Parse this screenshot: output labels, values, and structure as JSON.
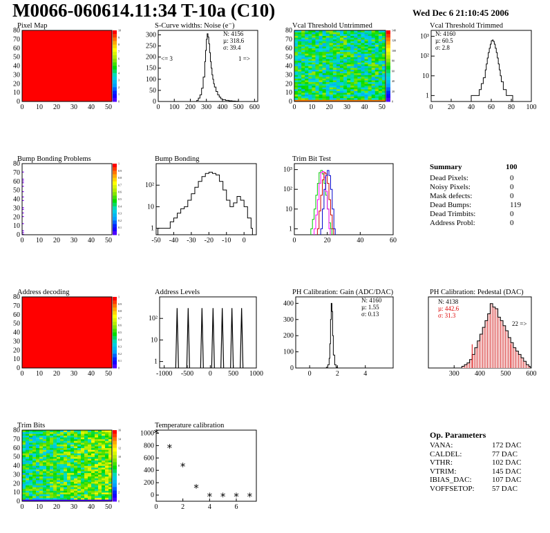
{
  "header": {
    "title": "M0066-060614.11:34 T-10a (C10)",
    "date": "Wed Dec  6 21:10:45 2006"
  },
  "summary": {
    "title": "Summary",
    "total": "100",
    "rows": [
      {
        "label": "Dead Pixels:",
        "value": "0"
      },
      {
        "label": "Noisy Pixels:",
        "value": "0"
      },
      {
        "label": "Mask defects:",
        "value": "0"
      },
      {
        "label": "Dead Bumps:",
        "value": "119"
      },
      {
        "label": "Dead Trimbits:",
        "value": "0"
      },
      {
        "label": "Address Probl:",
        "value": "0"
      }
    ]
  },
  "op_params": {
    "title": "Op. Parameters",
    "rows": [
      {
        "label": "VANA:",
        "value": "172 DAC"
      },
      {
        "label": "CALDEL:",
        "value": "77 DAC"
      },
      {
        "label": "VTHR:",
        "value": "102 DAC"
      },
      {
        "label": "VTRIM:",
        "value": "145 DAC"
      },
      {
        "label": "IBIAS_DAC:",
        "value": "107 DAC"
      },
      {
        "label": "VOFFSETOP:",
        "value": "57 DAC"
      }
    ]
  },
  "chart_data": [
    {
      "id": "pixel-map",
      "type": "heatmap",
      "title": "Pixel Map",
      "xlim": [
        0,
        52
      ],
      "ylim": [
        0,
        80
      ],
      "xticks": [
        0,
        10,
        20,
        30,
        40,
        50
      ],
      "yticks": [
        0,
        10,
        20,
        30,
        40,
        50,
        60,
        70,
        80
      ],
      "fill": "uniform",
      "value": 10,
      "zlim": [
        0,
        10
      ],
      "zticks": [
        "0",
        "1",
        "2",
        "3",
        "4",
        "5",
        "6",
        "7",
        "8",
        "9",
        "10"
      ]
    },
    {
      "id": "scurve-noise",
      "type": "line",
      "title": "S-Curve widths: Noise (e⁻)",
      "xlim": [
        0,
        620
      ],
      "ylim": [
        0,
        320
      ],
      "xticks": [
        0,
        100,
        200,
        300,
        400,
        500,
        600
      ],
      "yticks": [
        0,
        50,
        100,
        150,
        200,
        250,
        300
      ],
      "stats": {
        "N": "N: 4156",
        "mean": "µ: 318.6",
        "sigma": "σ: 39.4"
      },
      "annotations": [
        "<= 3",
        "1 =>"
      ],
      "x": [
        230,
        240,
        250,
        260,
        270,
        280,
        290,
        295,
        300,
        305,
        310,
        315,
        320,
        325,
        330,
        335,
        340,
        345,
        350,
        360,
        370,
        380,
        390,
        400,
        420,
        440,
        460,
        480,
        500
      ],
      "values": [
        0,
        5,
        15,
        30,
        60,
        110,
        180,
        230,
        280,
        305,
        290,
        260,
        220,
        180,
        150,
        120,
        100,
        80,
        65,
        45,
        30,
        20,
        12,
        8,
        5,
        3,
        2,
        1,
        0
      ]
    },
    {
      "id": "vcal-untrimmed",
      "type": "heatmap",
      "title": "Vcal Threshold Untrimmed",
      "xlim": [
        0,
        52
      ],
      "ylim": [
        0,
        80
      ],
      "xticks": [
        0,
        10,
        20,
        30,
        40,
        50
      ],
      "yticks": [
        0,
        10,
        20,
        30,
        40,
        50,
        60,
        70,
        80
      ],
      "fill": "noise",
      "zlim": [
        0,
        140
      ],
      "zticks": [
        "0",
        "20",
        "40",
        "60",
        "80",
        "100",
        "120",
        "140"
      ]
    },
    {
      "id": "vcal-trimmed",
      "type": "line",
      "title": "Vcal Threshold Trimmed",
      "log_y": true,
      "xlim": [
        0,
        100
      ],
      "ylim": [
        0.5,
        2000
      ],
      "xticks": [
        0,
        20,
        40,
        60,
        80,
        100
      ],
      "ytick_labels": [
        "1",
        "10",
        "10²",
        "10³"
      ],
      "ytick_values": [
        1,
        10,
        100,
        1000
      ],
      "stats": {
        "N": "N: 4160",
        "mean": "µ: 60.5",
        "sigma": "σ:  2.8"
      },
      "x": [
        40,
        45,
        48,
        50,
        52,
        54,
        55,
        56,
        57,
        58,
        59,
        60,
        61,
        62,
        63,
        64,
        65,
        66,
        67,
        68,
        69,
        70,
        72,
        75,
        78,
        80
      ],
      "values": [
        1,
        1,
        2,
        4,
        8,
        20,
        40,
        80,
        150,
        250,
        400,
        600,
        650,
        550,
        400,
        250,
        150,
        80,
        40,
        20,
        10,
        5,
        2,
        1,
        1,
        1
      ]
    },
    {
      "id": "bump-map",
      "type": "heatmap",
      "title": "Bump Bonding Problems",
      "xlim": [
        0,
        52
      ],
      "ylim": [
        0,
        80
      ],
      "xticks": [
        0,
        10,
        20,
        30,
        40,
        50
      ],
      "yticks": [
        0,
        10,
        20,
        30,
        40,
        50,
        60,
        70,
        80
      ],
      "fill": "sparse",
      "zlim": [
        0,
        1
      ],
      "zticks": [
        "0",
        "0.1",
        "0.2",
        "0.3",
        "0.4",
        "0.5",
        "0.6",
        "0.7",
        "0.8",
        "0.9",
        "1"
      ]
    },
    {
      "id": "bump-bonding",
      "type": "line",
      "title": "Bump Bonding",
      "log_y": true,
      "xlim": [
        -50,
        7
      ],
      "ylim": [
        0.5,
        1000
      ],
      "xticks": [
        -50,
        -40,
        -30,
        -20,
        -10,
        0
      ],
      "ytick_labels": [
        "1",
        "10",
        "10²"
      ],
      "ytick_values": [
        1,
        10,
        100
      ],
      "x": [
        -49,
        -46,
        -44,
        -42,
        -40,
        -38,
        -36,
        -34,
        -32,
        -30,
        -28,
        -26,
        -24,
        -22,
        -20,
        -18,
        -16,
        -14,
        -12,
        -10,
        -8,
        -6,
        -4,
        -2,
        0,
        2,
        4
      ],
      "values": [
        1,
        1,
        1,
        2,
        3,
        5,
        8,
        10,
        20,
        40,
        80,
        150,
        250,
        350,
        400,
        350,
        300,
        150,
        60,
        20,
        10,
        15,
        30,
        20,
        10,
        3,
        1
      ]
    },
    {
      "id": "trim-bit-test",
      "type": "line",
      "title": "Trim Bit Test",
      "log_y": true,
      "xlim": [
        0,
        60
      ],
      "ylim": [
        0.5,
        2000
      ],
      "xticks": [
        0,
        20,
        40,
        60
      ],
      "ytick_labels": [
        "1",
        "10",
        "10²",
        "10³"
      ],
      "ytick_values": [
        1,
        10,
        100,
        1000
      ],
      "series": [
        {
          "color": "#00cc00",
          "x": [
            10,
            11,
            12,
            13,
            14,
            15,
            16,
            17,
            18,
            19,
            20,
            21,
            22
          ],
          "values": [
            1,
            3,
            10,
            50,
            200,
            700,
            900,
            600,
            200,
            50,
            10,
            2,
            1
          ]
        },
        {
          "color": "#ff00ff",
          "x": [
            12,
            13,
            14,
            15,
            16,
            17,
            18,
            19,
            20,
            21
          ],
          "values": [
            1,
            5,
            30,
            200,
            700,
            800,
            400,
            80,
            10,
            1
          ]
        },
        {
          "color": "#cc0000",
          "x": [
            14,
            15,
            16,
            17,
            18,
            19,
            20,
            21,
            22,
            23
          ],
          "values": [
            1,
            8,
            50,
            300,
            700,
            600,
            200,
            30,
            5,
            1
          ]
        },
        {
          "color": "#0000cc",
          "x": [
            16,
            17,
            18,
            19,
            20,
            21,
            22,
            23,
            24
          ],
          "values": [
            1,
            10,
            100,
            500,
            900,
            500,
            100,
            10,
            1
          ]
        }
      ]
    },
    {
      "id": "address-decoding",
      "type": "heatmap",
      "title": "Address decoding",
      "xlim": [
        0,
        52
      ],
      "ylim": [
        0,
        80
      ],
      "xticks": [
        0,
        10,
        20,
        30,
        40,
        50
      ],
      "yticks": [
        0,
        10,
        20,
        30,
        40,
        50,
        60,
        70,
        80
      ],
      "fill": "uniform",
      "value": 1,
      "zlim": [
        0,
        1
      ],
      "zticks": [
        "0",
        "0.1",
        "0.2",
        "0.3",
        "0.4",
        "0.5",
        "0.6",
        "0.7",
        "0.8",
        "0.9",
        "1"
      ]
    },
    {
      "id": "address-levels",
      "type": "line",
      "title": "Address Levels",
      "log_y": true,
      "xlim": [
        -1100,
        1000
      ],
      "ylim": [
        0.5,
        1000
      ],
      "xticks": [
        -1000,
        -500,
        0,
        500,
        1000
      ],
      "ytick_labels": [
        "1",
        "10",
        "10²"
      ],
      "ytick_values": [
        1,
        10,
        100
      ],
      "peaks": [
        -720,
        -480,
        -180,
        60,
        260,
        470,
        680
      ],
      "peak_values": [
        300,
        300,
        300,
        300,
        300,
        300,
        300
      ]
    },
    {
      "id": "ph-gain",
      "type": "line",
      "title": "PH Calibration: Gain (ADC/DAC)",
      "xlim": [
        -1,
        6
      ],
      "ylim": [
        0,
        440
      ],
      "xticks": [
        0,
        2,
        4
      ],
      "yticks": [
        0,
        100,
        200,
        300,
        400
      ],
      "stats": {
        "N": "N: 4160",
        "mean": "µ: 1.55",
        "sigma": "σ: 0.13"
      },
      "x": [
        1.0,
        1.2,
        1.3,
        1.4,
        1.45,
        1.5,
        1.55,
        1.6,
        1.65,
        1.7,
        1.8,
        1.9,
        2.0
      ],
      "values": [
        0,
        5,
        20,
        60,
        150,
        300,
        400,
        350,
        200,
        80,
        20,
        5,
        0
      ]
    },
    {
      "id": "ph-pedestal",
      "type": "line",
      "title": "PH Calibration: Pedestal (DAC)",
      "xlim": [
        200,
        600
      ],
      "ylim": [
        0,
        42
      ],
      "xticks": [
        300,
        400,
        500,
        600
      ],
      "stats": {
        "N": "N: 4138",
        "mean": "µ: 442.6",
        "sigma": "σ: 31.3"
      },
      "annotations": [
        "22 =>"
      ],
      "cut_low": 370,
      "cut_high": 520,
      "x": [
        330,
        340,
        350,
        360,
        370,
        380,
        390,
        400,
        410,
        420,
        430,
        440,
        450,
        460,
        470,
        480,
        490,
        500,
        510,
        520,
        530,
        540,
        550,
        560,
        570,
        580,
        590
      ],
      "values": [
        1,
        2,
        3,
        5,
        8,
        12,
        16,
        20,
        24,
        28,
        32,
        38,
        36,
        35,
        30,
        28,
        25,
        22,
        18,
        15,
        12,
        10,
        8,
        6,
        4,
        2,
        1
      ]
    },
    {
      "id": "trim-bits",
      "type": "heatmap",
      "title": "Trim Bits",
      "xlim": [
        0,
        52
      ],
      "ylim": [
        0,
        80
      ],
      "xticks": [
        0,
        10,
        20,
        30,
        40,
        50
      ],
      "yticks": [
        0,
        10,
        20,
        30,
        40,
        50,
        60,
        70,
        80
      ],
      "fill": "noise2",
      "zlim": [
        0,
        16
      ],
      "zticks": [
        "0",
        "2",
        "4",
        "6",
        "8",
        "10",
        "12",
        "14",
        "16"
      ]
    },
    {
      "id": "temperature",
      "type": "scatter",
      "title": "Temperature calibration",
      "xlim": [
        0,
        7.5
      ],
      "ylim": [
        -100,
        1050
      ],
      "xticks": [
        0,
        2,
        4,
        6
      ],
      "yticks": [
        0,
        200,
        400,
        600,
        800,
        1000
      ],
      "x": [
        0,
        1,
        2,
        3,
        4,
        5,
        6,
        7
      ],
      "values": [
        1000,
        760,
        460,
        110,
        -30,
        -30,
        -30,
        -30
      ]
    }
  ]
}
